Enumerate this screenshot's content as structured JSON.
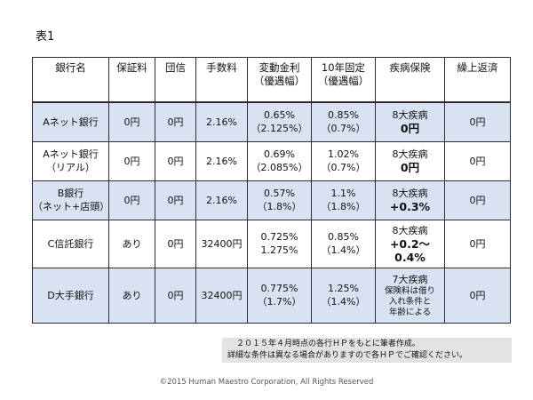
{
  "caption": "表1",
  "headers": [
    [
      "銀行名"
    ],
    [
      "保証料"
    ],
    [
      "団信"
    ],
    [
      "手数料"
    ],
    [
      "変動金利",
      "（優遇幅）"
    ],
    [
      "10年固定",
      "（優遇幅）"
    ],
    [
      "疾病保険"
    ],
    [
      "繰上返済"
    ]
  ],
  "rows": [
    {
      "bank": [
        "Aネット銀行"
      ],
      "guarantee": "0円",
      "group_life": "0円",
      "fee": "2.16%",
      "variable": [
        "0.65%",
        "（2.125%）"
      ],
      "fixed10": [
        "0.85%",
        "（0.7%）"
      ],
      "illness": [
        "8大疾病",
        "0円"
      ],
      "prepay": "0円"
    },
    {
      "bank": [
        "Aネット銀行",
        "（リアル）"
      ],
      "guarantee": "0円",
      "group_life": "0円",
      "fee": "2.16%",
      "variable": [
        "0.69%",
        "（2.085%）"
      ],
      "fixed10": [
        "1.02%",
        "（0.7%）"
      ],
      "illness": [
        "8大疾病",
        "0円"
      ],
      "prepay": "0円"
    },
    {
      "bank": [
        "B銀行",
        "（ネット+店頭）"
      ],
      "guarantee": "0円",
      "group_life": "0円",
      "fee": "2.16%",
      "variable": [
        "0.57%",
        "（1.8%）"
      ],
      "fixed10": [
        "1.1%",
        "（1.8%）"
      ],
      "illness": [
        "8大疾病",
        "+0.3%"
      ],
      "prepay": "0円"
    },
    {
      "bank": [
        "C信託銀行"
      ],
      "guarantee": "あり",
      "group_life": "0円",
      "fee": "32400円",
      "variable": [
        "0.725%",
        "1.275%"
      ],
      "fixed10": [
        "0.85%",
        "（1.4%）"
      ],
      "illness": [
        "8大疾病",
        "+0.2～",
        "0.4%"
      ],
      "prepay": "0円"
    },
    {
      "bank": [
        "D大手銀行"
      ],
      "guarantee": "あり",
      "group_life": "0円",
      "fee": "32400円",
      "variable": [
        "0.775%",
        "（1.7%）"
      ],
      "fixed10": [
        "1.25%",
        "（1.4%）"
      ],
      "illness": [
        "7大疾病",
        "保険料は借り",
        "入れ条件と",
        "年齢による"
      ],
      "prepay": "0円"
    }
  ],
  "note": [
    "２０１５年４月時点の各行ＨＰをもとに筆者作成。",
    "詳細な条件は異なる場合がありますので各ＨＰでご確認ください。"
  ],
  "copyright": "©2015 Human Maestro Corporation, All Rights Reserved"
}
